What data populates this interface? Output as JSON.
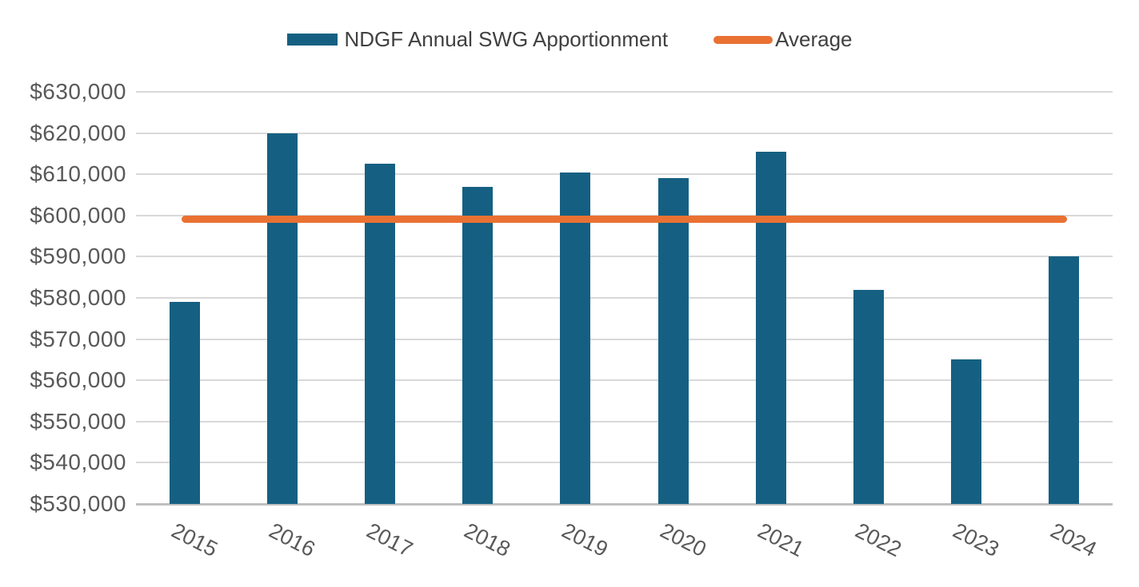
{
  "chart_data": {
    "type": "bar",
    "title": "",
    "xlabel": "",
    "ylabel": "",
    "categories": [
      "2015",
      "2016",
      "2017",
      "2018",
      "2019",
      "2020",
      "2021",
      "2022",
      "2023",
      "2024"
    ],
    "series": [
      {
        "name": "NDGF Annual SWG Apportionment",
        "type": "bar",
        "color": "#156082",
        "values": [
          579000,
          620000,
          612500,
          607000,
          610500,
          609000,
          615500,
          582000,
          565000,
          590000
        ]
      },
      {
        "name": "Average",
        "type": "line",
        "color": "#E97132",
        "value": 599050
      }
    ],
    "ylim": [
      530000,
      630000
    ],
    "y_tick_step": 10000,
    "y_tick_labels": [
      "$530,000",
      "$540,000",
      "$550,000",
      "$560,000",
      "$570,000",
      "$580,000",
      "$590,000",
      "$600,000",
      "$610,000",
      "$620,000",
      "$630,000"
    ],
    "grid": true,
    "legend_position": "top"
  },
  "colors": {
    "bar": "#156082",
    "average_line": "#E97132",
    "gridline": "#D9D9D9",
    "axis_line": "#BFBFBF",
    "tick_text": "#595959",
    "legend_text": "#404040",
    "background": "#FFFFFF"
  }
}
